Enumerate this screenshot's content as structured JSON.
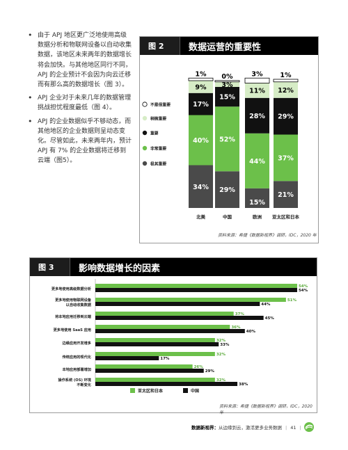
{
  "bullets": [
    "由于 APJ 地区更广泛地使用高级数据分析和物联网设备以自动收集数据，该地区未来两年的数据增长将会加快。与其他地区同行不同，APJ 的企业预计不会因为向云迁移而有那么高的数据增长（图 3）。",
    "APJ 企业对于未来几年的数据管理挑战担忧程度最低（图 4）。",
    "APJ 的企业数据似乎不够动态，而其他地区的企业数据则呈动态变化。尽管如此，未来两年内，预计 APJ 有 7% 的企业数据将迁移到云端（图5）。"
  ],
  "fig2": {
    "number": "图 2",
    "title": "数据运营的重要性",
    "source": "资料来源：希捷《数据新视界》调研，IDC，2020 年"
  },
  "fig3": {
    "number": "图 3",
    "title": "影响数据增长的因素",
    "source": "资料来源：希捷《数据新视界》调研，IDC，2020 年"
  },
  "footer": {
    "title": "数据新视界：",
    "subtitle": "从边缘到云，激活更多业务数据",
    "page": "41"
  },
  "colors": {
    "not_important": "#ffffff",
    "slightly": "#d6ecc6",
    "important": "#111111",
    "very": "#6cc04a",
    "extremely": "#4a4a4a",
    "apj": "#6cc04a",
    "china": "#111111"
  },
  "chart_data": [
    {
      "type": "bar",
      "stacked": true,
      "categories": [
        "北美",
        "中国",
        "欧洲",
        "亚太区和日本"
      ],
      "series": [
        {
          "name": "极其重要",
          "values": [
            34,
            29,
            15,
            21
          ]
        },
        {
          "name": "非常重要",
          "values": [
            40,
            52,
            44,
            37
          ]
        },
        {
          "name": "重要",
          "values": [
            17,
            15,
            28,
            29
          ]
        },
        {
          "name": "稍微重要",
          "values": [
            9,
            3,
            11,
            12
          ]
        },
        {
          "name": "不是很重要",
          "values": [
            1,
            0,
            3,
            1
          ]
        }
      ],
      "legend": "left",
      "ylim": [
        0,
        100
      ]
    },
    {
      "type": "bar",
      "orientation": "horizontal",
      "categories": [
        "更多地使用高级数据分析",
        "更多地使用物联网设备以自动收集数据",
        "将本地应用迁移到云端",
        "更多地使用 SaaS 应用",
        "边缘应用开发增多",
        "传统应用的现代化",
        "本地应用部署增加",
        "操作系统 (OS) 环境不断变化"
      ],
      "series": [
        {
          "name": "亚太区和日本",
          "values": [
            54,
            51,
            37,
            36,
            32,
            32,
            26,
            32
          ]
        },
        {
          "name": "中国",
          "values": [
            54,
            44,
            45,
            40,
            33,
            17,
            29,
            38
          ]
        }
      ],
      "legend": "bottom",
      "xlim": [
        0,
        60
      ]
    }
  ]
}
